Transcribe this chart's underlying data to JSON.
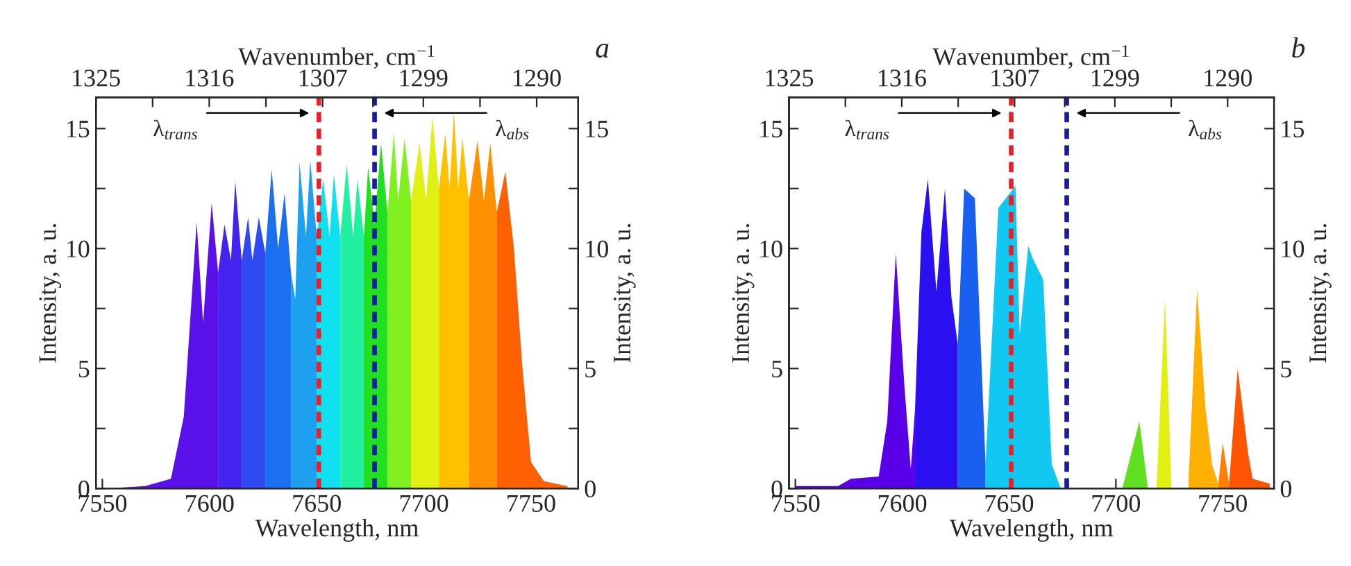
{
  "chart_data": [
    {
      "type": "area",
      "title": "a",
      "xlabel": "Wavelength, nm",
      "x2label": "Wavenumber, cm$^{−1}$",
      "ylabel": "Intensity, a. u.",
      "y2label": "Intensity, a. u.",
      "xlim": [
        7547,
        7772
      ],
      "xticks": [
        7550,
        7600,
        7650,
        7700,
        7750
      ],
      "x2lim": [
        1325.0,
        1286.7
      ],
      "x2ticks": [
        1325,
        {
          "value": 1320.5,
          "label": null
        },
        1316,
        {
          "value": 1311.5,
          "label": null
        },
        1307,
        {
          "value": 1303,
          "label": null
        },
        1299,
        {
          "value": 1294.5,
          "label": null
        },
        1290
      ],
      "ylim": [
        0,
        16.3
      ],
      "yticks": [
        0,
        {
          "value": 2.5,
          "label": null
        },
        5,
        {
          "value": 7.5,
          "label": null
        },
        10,
        {
          "value": 12.5,
          "label": null
        },
        15
      ],
      "y2lim": [
        0,
        16.3
      ],
      "y2ticks": [
        0,
        {
          "value": 2.5,
          "label": null
        },
        5,
        {
          "value": 7.5,
          "label": null
        },
        10,
        {
          "value": 12.5,
          "label": null
        },
        15
      ],
      "ref_lines": [
        {
          "axis": "x",
          "value": 7651,
          "label": "λ$_{trans}$",
          "color": "#e8202a",
          "line_style": "dashed"
        },
        {
          "axis": "x",
          "value": 7677,
          "label": "λ$_{abs}$",
          "color": "#1a1aa8",
          "line_style": "dashed"
        }
      ],
      "series": [
        {
          "color": "#5a10e8",
          "x": [
            7552,
            7570,
            7582,
            7588,
            7594,
            7597,
            7601,
            7604
          ],
          "values": [
            0,
            0.1,
            0.4,
            3,
            11.1,
            6.9,
            11.9,
            9
          ]
        },
        {
          "color": "#4422f0",
          "x": [
            7604,
            7607,
            7610,
            7612,
            7615
          ],
          "values": [
            9,
            11.0,
            9.5,
            12.8,
            9.5
          ]
        },
        {
          "color": "#2f4af0",
          "x": [
            7615,
            7618,
            7620,
            7623,
            7626
          ],
          "values": [
            9.5,
            11.3,
            9.5,
            11.3,
            9.8
          ]
        },
        {
          "color": "#1a70f0",
          "x": [
            7626,
            7629,
            7632,
            7635,
            7638
          ],
          "values": [
            9.8,
            13.3,
            10,
            12.3,
            9
          ]
        },
        {
          "color": "#1ea0f0",
          "x": [
            7638,
            7640,
            7642,
            7645,
            7647,
            7650
          ],
          "values": [
            9,
            7.9,
            13.6,
            10.5,
            13.7,
            10.5
          ]
        },
        {
          "color": "#10e0f0",
          "x": [
            7650,
            7653,
            7656,
            7658,
            7661
          ],
          "values": [
            10.5,
            12.9,
            10.5,
            13.1,
            10.5
          ]
        },
        {
          "color": "#20f0a0",
          "x": [
            7661,
            7664,
            7667,
            7669,
            7672
          ],
          "values": [
            10.5,
            13.5,
            10.5,
            12.9,
            10.5
          ]
        },
        {
          "color": "#20e020",
          "x": [
            7672,
            7674,
            7677,
            7680,
            7683
          ],
          "values": [
            10.5,
            13.4,
            11,
            14.4,
            11.5
          ]
        },
        {
          "color": "#80f020",
          "x": [
            7683,
            7686,
            7688,
            7691,
            7694
          ],
          "values": [
            11.5,
            14.8,
            12,
            14.6,
            12
          ]
        },
        {
          "color": "#e0f010",
          "x": [
            7694,
            7698,
            7701,
            7704,
            7707
          ],
          "values": [
            12,
            14.4,
            12,
            15.5,
            12.5
          ]
        },
        {
          "color": "#ffc000",
          "x": [
            7707,
            7710,
            7712,
            7714,
            7716,
            7718,
            7721
          ],
          "values": [
            12.5,
            14.8,
            12.5,
            15.7,
            12.5,
            14.6,
            12
          ]
        },
        {
          "color": "#ff9000",
          "x": [
            7721,
            7725,
            7728,
            7731,
            7734
          ],
          "values": [
            12,
            14.5,
            12,
            14.4,
            11.5
          ]
        },
        {
          "color": "#ff6000",
          "x": [
            7734,
            7738,
            7742,
            7746,
            7750,
            7756,
            7767
          ],
          "values": [
            11.5,
            13.2,
            10,
            5.0,
            1.1,
            0.3,
            0.1
          ]
        }
      ]
    },
    {
      "type": "area",
      "title": "b",
      "xlabel": "Wavelength, nm",
      "x2label": "Wavenumber, cm$^{−1}$",
      "ylabel": "Intensity, a. u.",
      "y2label": "Intensity, a. u.",
      "xlim": [
        7547,
        7774
      ],
      "xticks": [
        7550,
        7600,
        7650,
        7700,
        7750
      ],
      "x2lim": [
        1325.0,
        1286.3
      ],
      "x2ticks": [
        1325,
        {
          "value": 1320.5,
          "label": null
        },
        1316,
        {
          "value": 1311.5,
          "label": null
        },
        1307,
        {
          "value": 1303,
          "label": null
        },
        1299,
        {
          "value": 1294.5,
          "label": null
        },
        1290
      ],
      "ylim": [
        0,
        16.3
      ],
      "yticks": [
        0,
        {
          "value": 2.5,
          "label": null
        },
        5,
        {
          "value": 7.5,
          "label": null
        },
        10,
        {
          "value": 12.5,
          "label": null
        },
        15
      ],
      "y2lim": [
        0,
        16.3
      ],
      "y2ticks": [
        0,
        {
          "value": 2.5,
          "label": null
        },
        5,
        {
          "value": 7.5,
          "label": null
        },
        10,
        {
          "value": 12.5,
          "label": null
        },
        15
      ],
      "ref_lines": [
        {
          "axis": "x",
          "value": 7651,
          "label": "λ$_{trans}$",
          "color": "#e8202a",
          "line_style": "dashed"
        },
        {
          "axis": "x",
          "value": 7677,
          "label": "λ$_{abs}$",
          "color": "#1a1aa8",
          "line_style": "dashed"
        }
      ],
      "series": [
        {
          "color": "#5a00e8",
          "x": [
            7550,
            7570,
            7576,
            7589,
            7593,
            7597,
            7601,
            7604,
            7606
          ],
          "values": [
            0.1,
            0.1,
            0.4,
            0.5,
            2.8,
            9.8,
            4.3,
            0.8,
            3.3
          ]
        },
        {
          "color": "#2a10f0",
          "x": [
            7606,
            7609,
            7612,
            7616,
            7620,
            7623,
            7626
          ],
          "values": [
            3.3,
            10.7,
            12.9,
            8.2,
            12.5,
            8.0,
            6
          ]
        },
        {
          "color": "#1a60f0",
          "x": [
            7626,
            7629,
            7634,
            7639
          ],
          "values": [
            6,
            12.5,
            12.1,
            1.0
          ]
        },
        {
          "color": "#10c8f0",
          "x": [
            7639,
            7645,
            7653,
            7655,
            7659,
            7661,
            7666,
            7670,
            7674
          ],
          "values": [
            1.0,
            11.7,
            12.6,
            6.4,
            10.1,
            9.6,
            8.7,
            1.0,
            0.05
          ]
        },
        {
          "color": "#60e020",
          "x": [
            7703,
            7711,
            7715
          ],
          "values": [
            0,
            2.8,
            0
          ]
        },
        {
          "color": "#e0f010",
          "x": [
            7719,
            7723,
            7726
          ],
          "values": [
            0,
            7.9,
            0
          ]
        },
        {
          "color": "#ffb000",
          "x": [
            7734,
            7738,
            7742,
            7745,
            7748
          ],
          "values": [
            0.3,
            8.3,
            3.3,
            1.0,
            0.2
          ]
        },
        {
          "color": "#ff8000",
          "x": [
            7748,
            7750,
            7753
          ],
          "values": [
            0.2,
            1.9,
            0.2
          ]
        },
        {
          "color": "#ff5500",
          "x": [
            7753,
            7757,
            7762,
            7764,
            7772
          ],
          "values": [
            0.2,
            5.0,
            1.4,
            0.4,
            0.2
          ]
        }
      ]
    }
  ]
}
